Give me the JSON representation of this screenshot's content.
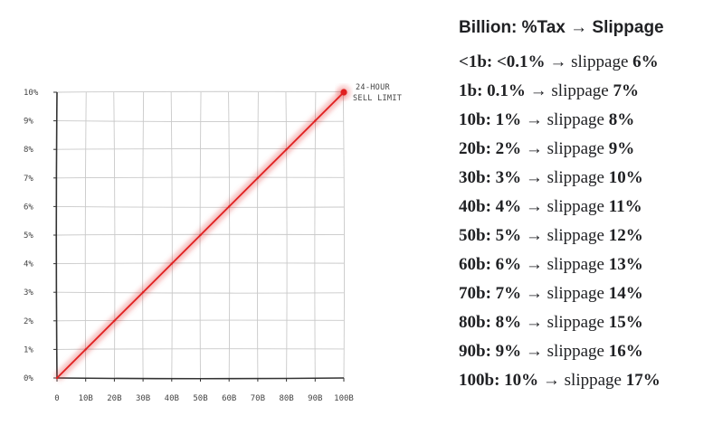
{
  "chart_data": {
    "type": "line",
    "x": [
      0,
      10,
      20,
      30,
      40,
      50,
      60,
      70,
      80,
      90,
      100
    ],
    "y": [
      0,
      1,
      2,
      3,
      4,
      5,
      6,
      7,
      8,
      9,
      10
    ],
    "x_tick_labels": [
      "0",
      "10B",
      "20B",
      "30B",
      "40B",
      "50B",
      "60B",
      "70B",
      "80B",
      "90B",
      "100B"
    ],
    "y_tick_labels": [
      "0%",
      "1%",
      "2%",
      "3%",
      "4%",
      "5%",
      "6%",
      "7%",
      "8%",
      "9%",
      "10%"
    ],
    "xlim": [
      0,
      100
    ],
    "ylim": [
      0,
      10
    ],
    "grid": true,
    "annotation": {
      "x": 100,
      "y": 10,
      "line1": "24-HOUR",
      "line2": "SELL LIMIT"
    },
    "line_color": "#e02020"
  },
  "panel": {
    "title": "Billion: %Tax → Slippage",
    "rows": [
      {
        "lead": "<1b: <0.1%",
        "mid": " → slippage ",
        "val": "6%"
      },
      {
        "lead": "1b: 0.1%",
        "mid": " → slippage ",
        "val": "7%"
      },
      {
        "lead": "10b: 1%",
        "mid": " → slippage ",
        "val": "8%"
      },
      {
        "lead": "20b: 2%",
        "mid": " → slippage ",
        "val": "9%"
      },
      {
        "lead": "30b: 3%",
        "mid": " → slippage ",
        "val": "10%"
      },
      {
        "lead": "40b: 4%",
        "mid": " → slippage ",
        "val": "11%"
      },
      {
        "lead": "50b: 5%",
        "mid": " → slippage ",
        "val": "12%"
      },
      {
        "lead": "60b: 6%",
        "mid": " → slippage ",
        "val": "13%"
      },
      {
        "lead": "70b: 7%",
        "mid": " → slippage ",
        "val": "14%"
      },
      {
        "lead": "80b: 8%",
        "mid": " → slippage ",
        "val": "15%"
      },
      {
        "lead": "90b: 9%",
        "mid": " → slippage ",
        "val": "16%"
      },
      {
        "lead": "100b: 10%",
        "mid": " → slippage ",
        "val": "17%"
      }
    ]
  }
}
